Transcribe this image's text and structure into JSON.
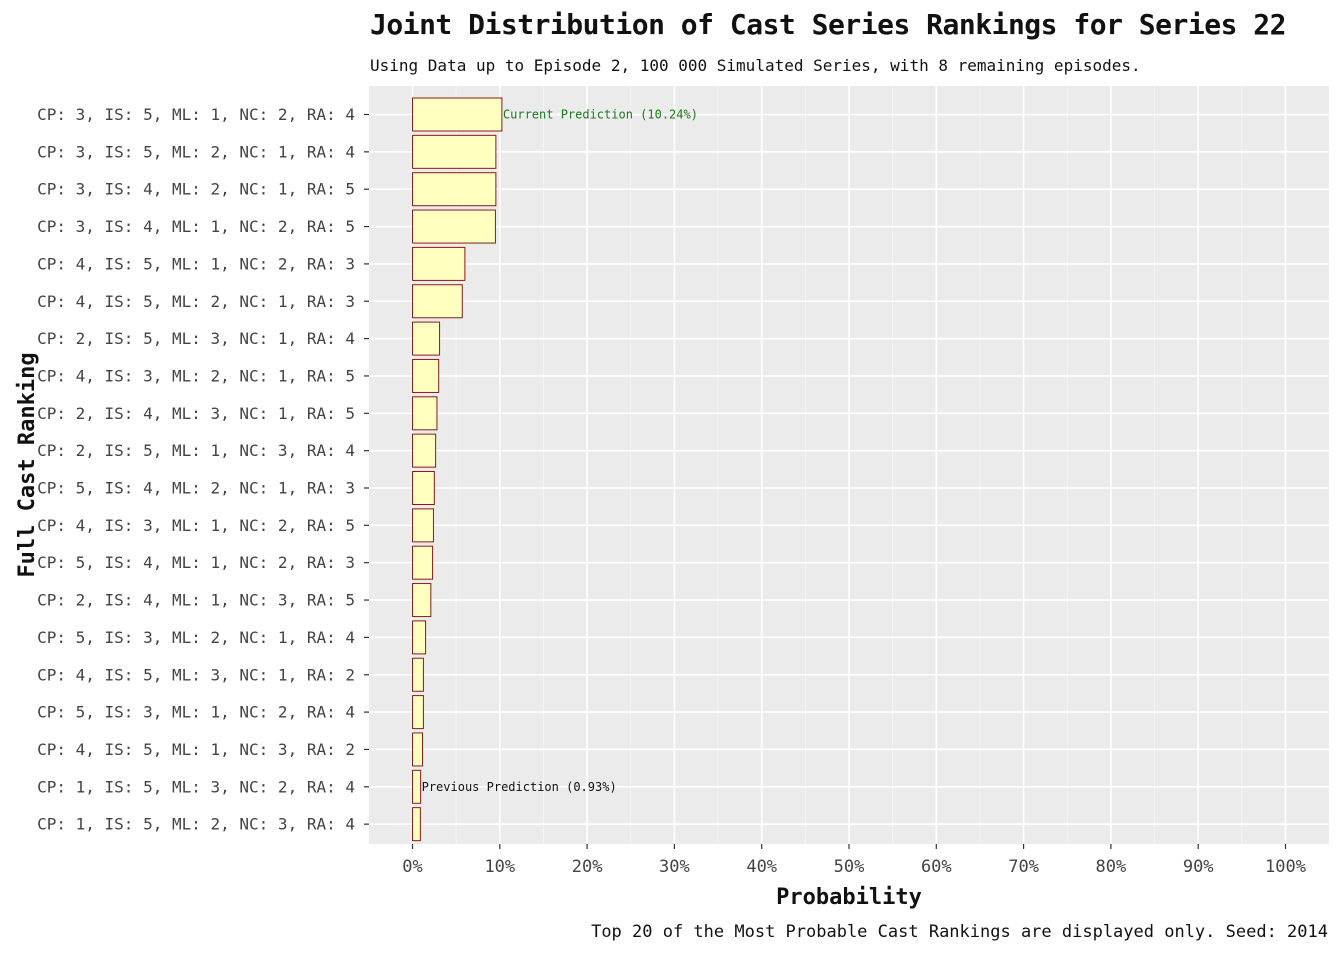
{
  "chart_data": {
    "type": "bar",
    "orientation": "horizontal",
    "title": "Joint Distribution of Cast Series Rankings for Series 22",
    "subtitle": "Using Data up to Episode 2, 100 000 Simulated Series, with 8 remaining episodes.",
    "caption": "Top 20 of the Most Probable Cast Rankings are displayed only. Seed: 2014",
    "xlabel": "Probability",
    "ylabel": "Full Cast Ranking",
    "xlim": [
      0,
      1
    ],
    "x_ticks": [
      "0%",
      "10%",
      "20%",
      "30%",
      "40%",
      "50%",
      "60%",
      "70%",
      "80%",
      "90%",
      "100%"
    ],
    "grid": true,
    "categories": [
      "CP: 3, IS: 5, ML: 1, NC: 2, RA: 4",
      "CP: 3, IS: 5, ML: 2, NC: 1, RA: 4",
      "CP: 3, IS: 4, ML: 2, NC: 1, RA: 5",
      "CP: 3, IS: 4, ML: 1, NC: 2, RA: 5",
      "CP: 4, IS: 5, ML: 1, NC: 2, RA: 3",
      "CP: 4, IS: 5, ML: 2, NC: 1, RA: 3",
      "CP: 2, IS: 5, ML: 3, NC: 1, RA: 4",
      "CP: 4, IS: 3, ML: 2, NC: 1, RA: 5",
      "CP: 2, IS: 4, ML: 3, NC: 1, RA: 5",
      "CP: 2, IS: 5, ML: 1, NC: 3, RA: 4",
      "CP: 5, IS: 4, ML: 2, NC: 1, RA: 3",
      "CP: 4, IS: 3, ML: 1, NC: 2, RA: 5",
      "CP: 5, IS: 4, ML: 1, NC: 2, RA: 3",
      "CP: 2, IS: 4, ML: 1, NC: 3, RA: 5",
      "CP: 5, IS: 3, ML: 2, NC: 1, RA: 4",
      "CP: 4, IS: 5, ML: 3, NC: 1, RA: 2",
      "CP: 5, IS: 3, ML: 1, NC: 2, RA: 4",
      "CP: 4, IS: 5, ML: 1, NC: 3, RA: 2",
      "CP: 1, IS: 5, ML: 3, NC: 2, RA: 4",
      "CP: 1, IS: 5, ML: 2, NC: 3, RA: 4"
    ],
    "values": [
      0.1024,
      0.0955,
      0.0955,
      0.095,
      0.06,
      0.057,
      0.031,
      0.03,
      0.028,
      0.0265,
      0.025,
      0.024,
      0.023,
      0.021,
      0.015,
      0.0125,
      0.0125,
      0.0115,
      0.0093,
      0.009
    ],
    "annotations": [
      {
        "category_index": 0,
        "text": "Current Prediction (10.24%)",
        "color": "#1a7a1a"
      },
      {
        "category_index": 18,
        "text": "Previous Prediction (0.93%)",
        "color": "#111111"
      }
    ],
    "colors": {
      "panel": "#ebebeb",
      "grid_major": "#ffffff",
      "bar_fill": "#ffffc0",
      "bar_stroke": "#8b1a1a"
    }
  }
}
